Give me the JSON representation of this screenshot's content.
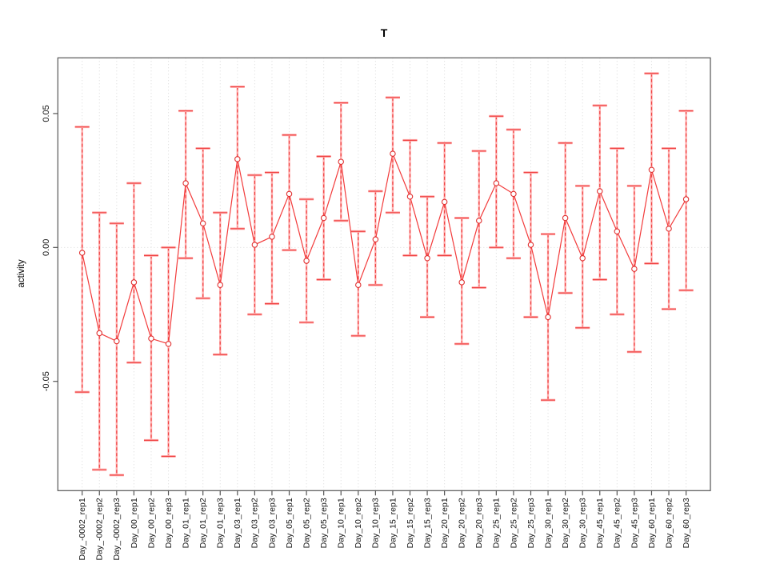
{
  "title": "T",
  "chart_data": {
    "type": "line",
    "subtype": "points-with-error-bars",
    "title": "T",
    "xlabel": "",
    "ylabel": "activity",
    "legend": "none",
    "grid": "dotted vertical gridline at every category; dotted horizontal line at y=0",
    "ylim": [
      -0.0908,
      0.0708
    ],
    "yticks": [
      0.05,
      0,
      -0.05
    ],
    "ytick_labels": [
      "0.05",
      "0.00",
      "-0.05"
    ],
    "series_color": "#f23b3b",
    "error_bar_color": "#ef4242",
    "error_bar_halo_color": "#ffb0b0",
    "gridline_color": "#d9d9d9",
    "axis_color": "#555555",
    "categories": [
      "Day_-0002_rep1",
      "Day_-0002_rep2",
      "Day_-0002_rep3",
      "Day_00_rep1",
      "Day_00_rep2",
      "Day_00_rep3",
      "Day_01_rep1",
      "Day_01_rep2",
      "Day_01_rep3",
      "Day_03_rep1",
      "Day_03_rep2",
      "Day_03_rep3",
      "Day_05_rep1",
      "Day_05_rep2",
      "Day_05_rep3",
      "Day_10_rep1",
      "Day_10_rep2",
      "Day_10_rep3",
      "Day_15_rep1",
      "Day_15_rep2",
      "Day_15_rep3",
      "Day_20_rep1",
      "Day_20_rep2",
      "Day_20_rep3",
      "Day_25_rep1",
      "Day_25_rep2",
      "Day_25_rep3",
      "Day_30_rep1",
      "Day_30_rep2",
      "Day_30_rep3",
      "Day_45_rep1",
      "Day_45_rep2",
      "Day_45_rep3",
      "Day_60_rep1",
      "Day_60_rep2",
      "Day_60_rep3"
    ],
    "values": [
      -0.002,
      -0.032,
      -0.035,
      -0.013,
      -0.034,
      -0.036,
      0.024,
      0.009,
      -0.014,
      0.033,
      0.001,
      0.004,
      0.02,
      -0.005,
      0.011,
      0.032,
      -0.014,
      0.003,
      0.035,
      0.019,
      -0.004,
      0.017,
      -0.013,
      0.01,
      0.024,
      0.02,
      0.001,
      -0.026,
      0.011,
      -0.004,
      0.021,
      0.006,
      -0.008,
      0.029,
      0.007,
      0.018
    ],
    "ci_low": [
      -0.054,
      -0.083,
      -0.085,
      -0.043,
      -0.072,
      -0.078,
      -0.004,
      -0.019,
      -0.04,
      0.007,
      -0.025,
      -0.021,
      -0.001,
      -0.028,
      -0.012,
      0.01,
      -0.033,
      -0.014,
      0.013,
      -0.003,
      -0.026,
      -0.003,
      -0.036,
      -0.015,
      0.0,
      -0.004,
      -0.026,
      -0.057,
      -0.017,
      -0.03,
      -0.012,
      -0.025,
      -0.039,
      -0.006,
      -0.023,
      -0.016
    ],
    "ci_high": [
      0.045,
      0.013,
      0.009,
      0.024,
      -0.003,
      0.0,
      0.051,
      0.037,
      0.013,
      0.06,
      0.027,
      0.028,
      0.042,
      0.018,
      0.034,
      0.054,
      0.006,
      0.021,
      0.056,
      0.04,
      0.019,
      0.039,
      0.011,
      0.036,
      0.049,
      0.044,
      0.028,
      0.005,
      0.039,
      0.023,
      0.053,
      0.037,
      0.023,
      0.065,
      0.037,
      0.051
    ]
  }
}
